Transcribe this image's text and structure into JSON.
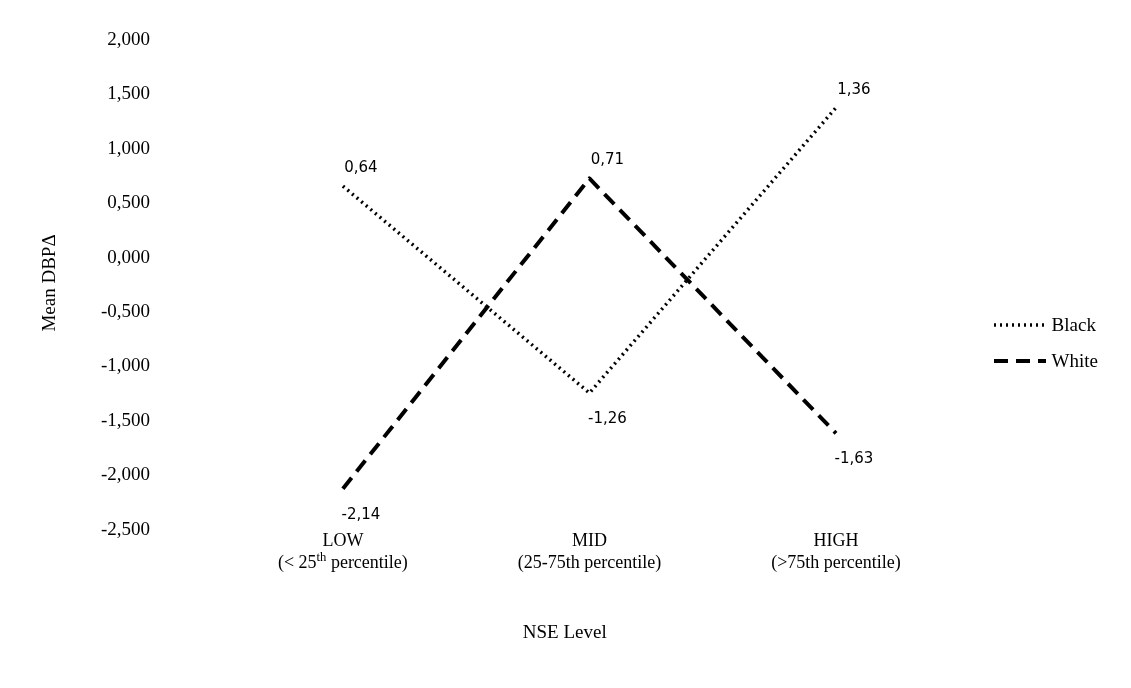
{
  "chart_data": {
    "type": "line",
    "xlabel": "NSE Level",
    "ylabel": "Mean DBPΔ",
    "categories": [
      "LOW\n(< 25$^{th}$ percentile)",
      "MID\n(25-75th percentile)",
      "HIGH\n(>75th percentile)"
    ],
    "series": [
      {
        "name": "Black",
        "color": "#000000",
        "line_style": "dotted",
        "values": [
          0.64,
          -1.26,
          1.36
        ],
        "value_labels": [
          "0,64",
          "-1,26",
          "1,36"
        ]
      },
      {
        "name": "White",
        "color": "#000000",
        "line_style": "dashed",
        "values": [
          -2.14,
          0.71,
          -1.63
        ],
        "value_labels": [
          "-2,14",
          "0,71",
          "-1,63"
        ]
      }
    ],
    "ylim": [
      -2.5,
      2
    ],
    "yticks": [
      {
        "value": -2.5,
        "label": "-2,500"
      },
      {
        "value": -2,
        "label": "-2,000"
      },
      {
        "value": -1.5,
        "label": "-1,500"
      },
      {
        "value": -1,
        "label": "-1,000"
      },
      {
        "value": -0.5,
        "label": "-0,500"
      },
      {
        "value": 0,
        "label": "0,000"
      },
      {
        "value": 0.5,
        "label": "0,500"
      },
      {
        "value": 1,
        "label": "1,000"
      },
      {
        "value": 1.5,
        "label": "1,500"
      },
      {
        "value": 2,
        "label": "2,000"
      }
    ],
    "grid": false,
    "legend": "right",
    "marker": "none"
  }
}
